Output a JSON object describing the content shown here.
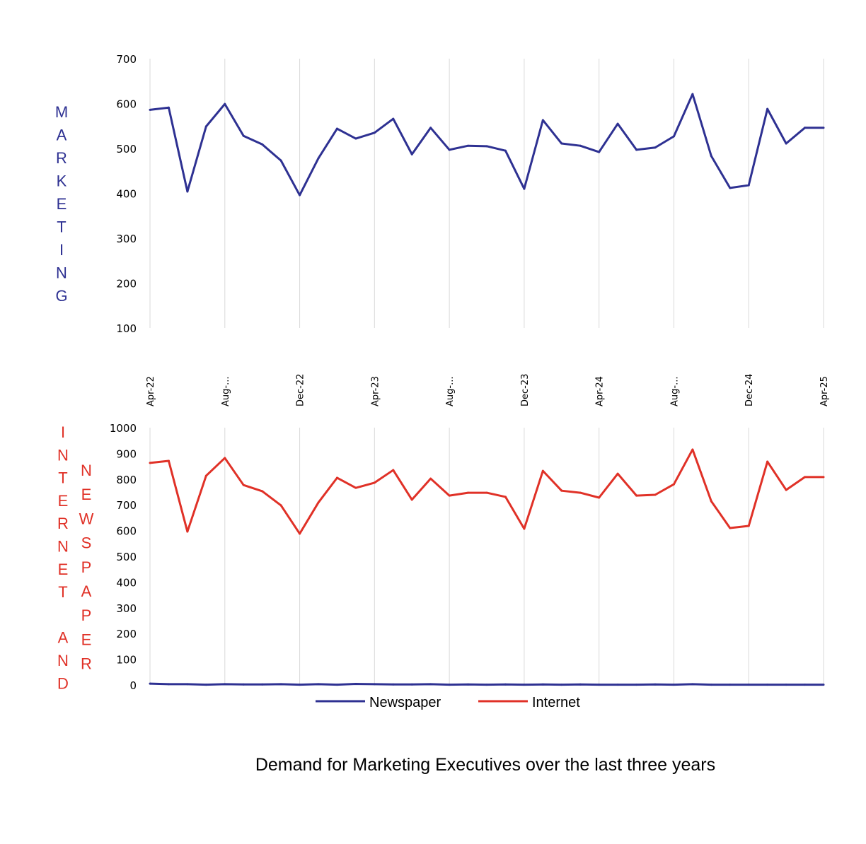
{
  "chart_data": [
    {
      "id": "marketing",
      "type": "line",
      "ylabel": "MARKETING",
      "ylabel_color": "#2E3192",
      "ylim": [
        100,
        700
      ],
      "yticks": [
        100,
        200,
        300,
        400,
        500,
        600,
        700
      ],
      "grid": "vertical",
      "x": [
        "Apr-22",
        "May-22",
        "Jun-22",
        "Jul-22",
        "Aug-22",
        "Sep-22",
        "Oct-22",
        "Nov-22",
        "Dec-22",
        "Jan-23",
        "Feb-23",
        "Mar-23",
        "Apr-23",
        "May-23",
        "Jun-23",
        "Jul-23",
        "Aug-23",
        "Sep-23",
        "Oct-23",
        "Nov-23",
        "Dec-23",
        "Jan-24",
        "Feb-24",
        "Mar-24",
        "Apr-24",
        "May-24",
        "Jun-24",
        "Jul-24",
        "Aug-24",
        "Sep-24",
        "Oct-24",
        "Nov-24",
        "Dec-24",
        "Jan-25",
        "Feb-25",
        "Mar-25",
        "Apr-25"
      ],
      "xtick_labels": [
        "Apr-22",
        "Aug-...",
        "Dec-22",
        "Apr-23",
        "Aug-...",
        "Dec-23",
        "Apr-24",
        "Aug-...",
        "Dec-24",
        "Apr-25"
      ],
      "series": [
        {
          "name": "Marketing",
          "color": "#2E3192",
          "values": [
            586,
            591,
            404,
            549,
            599,
            528,
            509,
            473,
            396,
            478,
            544,
            522,
            535,
            566,
            487,
            546,
            497,
            506,
            505,
            495,
            410,
            563,
            511,
            506,
            492,
            555,
            497,
            502,
            527,
            621,
            483,
            412,
            418,
            588,
            511,
            546,
            546
          ]
        }
      ]
    },
    {
      "id": "internet-newspaper",
      "type": "line",
      "ylabel_left": "INTERNET AND",
      "ylabel_right": "NEWSPAPER",
      "ylabel_color": "#E03127",
      "ylim": [
        0,
        1000
      ],
      "yticks": [
        0,
        100,
        200,
        300,
        400,
        500,
        600,
        700,
        800,
        900,
        1000
      ],
      "grid": "vertical",
      "legend_position": "bottom",
      "series": [
        {
          "name": "Newspaper",
          "color": "#2E3192",
          "values": [
            5,
            3,
            3,
            1,
            3,
            2,
            2,
            3,
            1,
            3,
            1,
            4,
            3,
            2,
            2,
            3,
            1,
            2,
            1,
            2,
            1,
            2,
            1,
            2,
            1,
            1,
            1,
            2,
            1,
            3,
            1,
            1,
            1,
            1,
            1,
            1,
            1
          ]
        },
        {
          "name": "Internet",
          "color": "#E03127",
          "values": [
            863,
            871,
            596,
            813,
            882,
            777,
            753,
            698,
            588,
            709,
            805,
            766,
            786,
            835,
            720,
            802,
            736,
            747,
            747,
            731,
            607,
            832,
            755,
            747,
            728,
            821,
            736,
            739,
            780,
            915,
            714,
            610,
            618,
            868,
            758,
            808,
            808
          ]
        }
      ]
    }
  ],
  "title": "Demand for Marketing Executives over the last three years",
  "legend": {
    "newspaper": "Newspaper",
    "internet": "Internet"
  }
}
